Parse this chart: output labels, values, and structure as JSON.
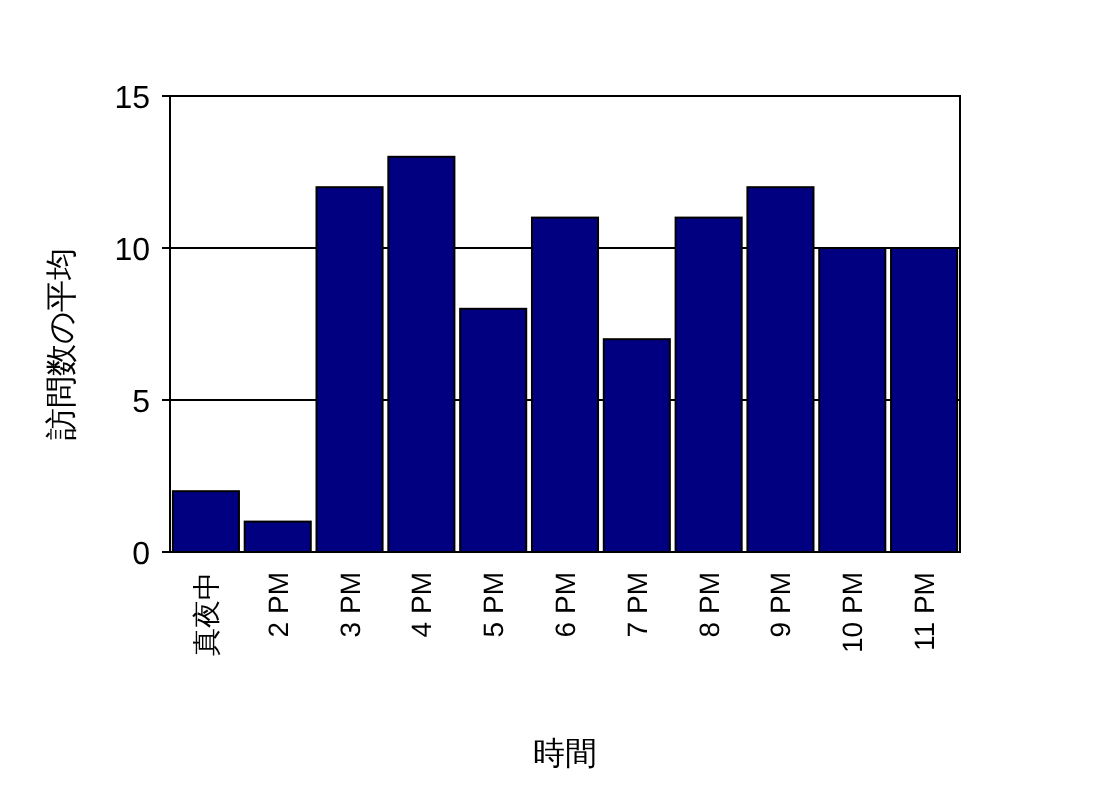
{
  "chart_data": {
    "type": "bar",
    "xlabel": "時間",
    "ylabel": "訪問数の平均",
    "categories": [
      "真夜中",
      "2 PM",
      "3 PM",
      "4 PM",
      "5 PM",
      "6 PM",
      "7 PM",
      "8 PM",
      "9 PM",
      "10 PM",
      "11 PM"
    ],
    "values": [
      2,
      1,
      12,
      13,
      8,
      11,
      7,
      11,
      12,
      10,
      10
    ],
    "color": "#000080",
    "ylim": [
      0,
      15
    ],
    "yticks": [
      0,
      5,
      10,
      15
    ],
    "grid": "y"
  }
}
